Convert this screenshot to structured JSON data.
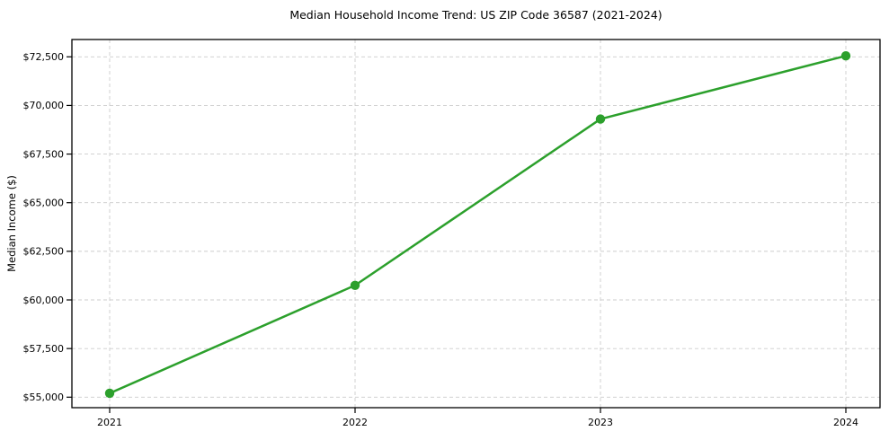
{
  "chart_data": {
    "type": "line",
    "title": "Median Household Income Trend: US ZIP Code 36587 (2021-2024)",
    "xlabel": "",
    "ylabel": "Median Income ($)",
    "categories": [
      "2021",
      "2022",
      "2023",
      "2024"
    ],
    "values": [
      55200,
      60750,
      69300,
      72550
    ],
    "ylim": [
      54460,
      73390
    ],
    "yticks": {
      "values": [
        55000,
        57500,
        60000,
        62500,
        65000,
        67500,
        70000,
        72500
      ],
      "labels": [
        "$55,000",
        "$57,500",
        "$60,000",
        "$62,500",
        "$65,000",
        "$67,500",
        "$70,000",
        "$72,500"
      ]
    },
    "grid": true,
    "grid_style": "dashed",
    "legend_position": "none",
    "line_color": "#2ca02c",
    "marker": "circle",
    "marker_color": "#2ca02c",
    "grid_color": "#cccccc",
    "spine_color": "#000000",
    "background_color": "#ffffff"
  }
}
